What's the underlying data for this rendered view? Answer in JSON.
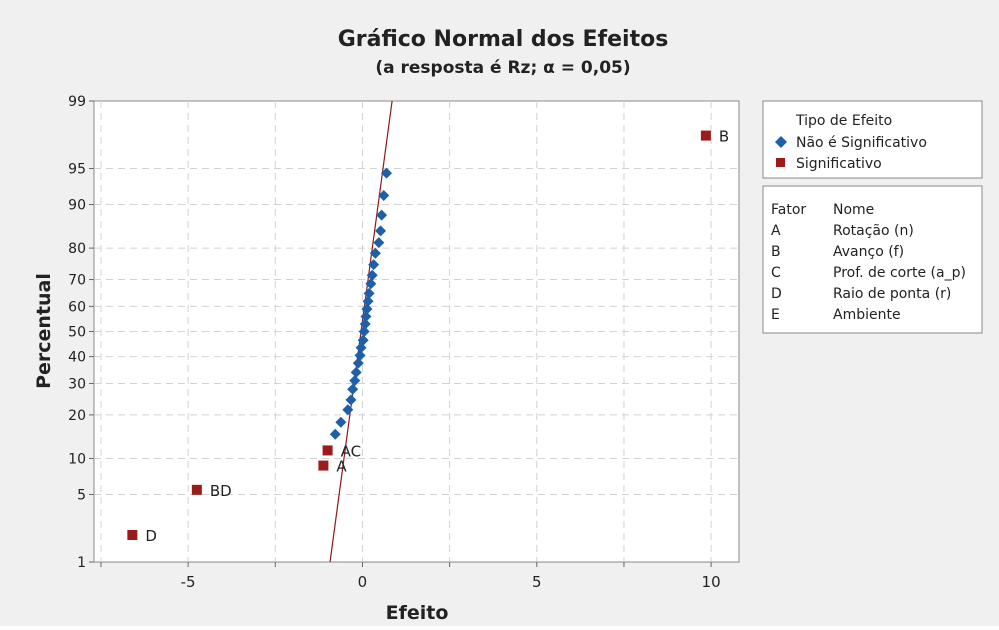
{
  "chart_data": {
    "type": "scatter",
    "title": "Gráfico Normal dos Efeitos",
    "subtitle": "(a resposta é  Rz; α = 0,05)",
    "xlabel": "Efeito",
    "ylabel": "Percentual",
    "scale_y": "normal-probability",
    "xlim": [
      -7.7,
      10.8
    ],
    "ylim": [
      1,
      99
    ],
    "x_ticks": [
      -5,
      0,
      5,
      10
    ],
    "y_ticks": [
      1,
      5,
      10,
      20,
      30,
      40,
      50,
      60,
      70,
      80,
      90,
      95,
      99
    ],
    "grid": true,
    "reference_line": {
      "color": "#8b1a1a",
      "points": [
        [
          -0.93,
          1
        ],
        [
          0.85,
          99
        ]
      ]
    },
    "series": [
      {
        "name": "Não é Significativo",
        "color": "#1f5fa8",
        "marker": "diamond",
        "points": [
          [
            -0.78,
            15.0
          ],
          [
            -0.62,
            18.0
          ],
          [
            -0.42,
            21.5
          ],
          [
            -0.33,
            24.5
          ],
          [
            -0.28,
            28.0
          ],
          [
            -0.22,
            31.0
          ],
          [
            -0.18,
            34.0
          ],
          [
            -0.12,
            37.5
          ],
          [
            -0.07,
            40.5
          ],
          [
            -0.04,
            43.5
          ],
          [
            0.02,
            46.5
          ],
          [
            0.05,
            50.0
          ],
          [
            0.08,
            53.0
          ],
          [
            0.1,
            56.0
          ],
          [
            0.13,
            59.0
          ],
          [
            0.16,
            62.0
          ],
          [
            0.19,
            65.0
          ],
          [
            0.24,
            68.5
          ],
          [
            0.28,
            71.5
          ],
          [
            0.32,
            75.0
          ],
          [
            0.37,
            78.5
          ],
          [
            0.47,
            81.5
          ],
          [
            0.52,
            84.5
          ],
          [
            0.55,
            88.0
          ],
          [
            0.61,
            91.5
          ],
          [
            0.69,
            94.5
          ]
        ]
      },
      {
        "name": "Significativo",
        "color": "#9b1b1b",
        "marker": "square",
        "points": [
          {
            "label": "B",
            "x": 9.85,
            "y": 97.6
          },
          {
            "label": "AC",
            "x": -1.0,
            "y": 11.5
          },
          {
            "label": "A",
            "x": -1.12,
            "y": 8.8
          },
          {
            "label": "BD",
            "x": -4.75,
            "y": 5.5
          },
          {
            "label": "D",
            "x": -6.6,
            "y": 2.0
          }
        ]
      }
    ],
    "legend": {
      "position": "right",
      "title": "Tipo de Efeito",
      "entries": [
        "Não é Significativo",
        "Significativo"
      ]
    },
    "factor_table": {
      "headers": [
        "Fator",
        "Nome"
      ],
      "rows": [
        [
          "A",
          "Rotação (n)"
        ],
        [
          "B",
          "Avanço (f)"
        ],
        [
          "C",
          "Prof. de corte (a_p)"
        ],
        [
          "D",
          "Raio de ponta (r)"
        ],
        [
          "E",
          "Ambiente"
        ]
      ]
    }
  }
}
